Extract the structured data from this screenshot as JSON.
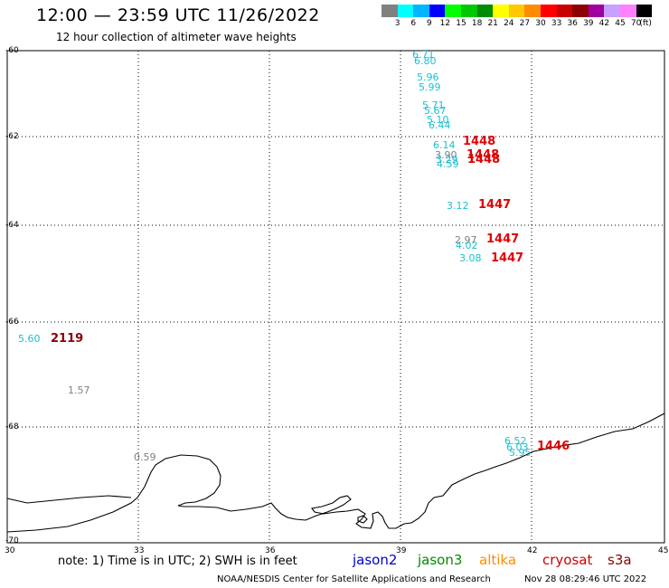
{
  "header": {
    "title": "12:00 — 23:59 UTC 11/26/2022",
    "subtitle": "12 hour collection of altimeter wave heights"
  },
  "colorbar": {
    "colors": [
      "#808080",
      "#00ffff",
      "#00b4ff",
      "#0000ff",
      "#00ff00",
      "#00c800",
      "#008c00",
      "#ffff00",
      "#ffc800",
      "#ff8c00",
      "#ff0000",
      "#c80000",
      "#8c0000",
      "#a000a0",
      "#c8a0ff",
      "#ff80ff",
      "#000000"
    ],
    "labels": [
      "3",
      "6",
      "9",
      "12",
      "15",
      "18",
      "21",
      "24",
      "27",
      "30",
      "33",
      "36",
      "39",
      "42",
      "45",
      "70",
      "(ft)"
    ]
  },
  "axes": {
    "lat_labels": [
      "-60",
      "-62",
      "-64",
      "-66",
      "-68",
      "-70"
    ],
    "lon_labels": [
      "30",
      "33",
      "36",
      "39",
      "42",
      "45"
    ]
  },
  "observations": {
    "swh_labels": [
      {
        "text": "6.71",
        "color": "cyan"
      },
      {
        "text": "6.80",
        "color": "cyan"
      },
      {
        "text": "5.96",
        "color": "cyan"
      },
      {
        "text": "5.99",
        "color": "cyan"
      },
      {
        "text": "5.71",
        "color": "cyan"
      },
      {
        "text": "5.67",
        "color": "cyan"
      },
      {
        "text": "5.10",
        "color": "cyan"
      },
      {
        "text": "6.44",
        "color": "cyan"
      },
      {
        "text": "6.14",
        "color": "cyan"
      },
      {
        "text": "3.90",
        "color": "gray"
      },
      {
        "text": "3.29",
        "color": "cyan"
      },
      {
        "text": "4.59",
        "color": "cyan"
      },
      {
        "text": "3.12",
        "color": "cyan"
      },
      {
        "text": "2.97",
        "color": "gray"
      },
      {
        "text": "4.02",
        "color": "cyan"
      },
      {
        "text": "3.08",
        "color": "cyan"
      },
      {
        "text": "5.60",
        "color": "cyan"
      },
      {
        "text": "1.57",
        "color": "gray"
      },
      {
        "text": "0.59",
        "color": "gray"
      },
      {
        "text": "6.52",
        "color": "cyan"
      },
      {
        "text": "6.03",
        "color": "cyan"
      },
      {
        "text": "5.95",
        "color": "cyan"
      }
    ],
    "time_labels": [
      {
        "text": "1448",
        "color": "red"
      },
      {
        "text": "1448",
        "color": "red"
      },
      {
        "text": "1448",
        "color": "red"
      },
      {
        "text": "1447",
        "color": "red"
      },
      {
        "text": "1447",
        "color": "red"
      },
      {
        "text": "1447",
        "color": "red"
      },
      {
        "text": "2119",
        "color": "dred"
      },
      {
        "text": "1446",
        "color": "red"
      }
    ]
  },
  "footer": {
    "note": "note:  1) Time is in UTC;  2) SWH is in feet",
    "satellites": [
      {
        "name": "jason2",
        "color": "#0000d0"
      },
      {
        "name": "jason3",
        "color": "#008c00"
      },
      {
        "name": "altika",
        "color": "#ff8c00"
      },
      {
        "name": "cryosat",
        "color": "#d00000"
      },
      {
        "name": "s3a",
        "color": "#8a0000"
      }
    ],
    "credit": "NOAA/NESDIS Center for Satellite Applications and Research",
    "timestamp": "Nov 28 08:29:46 UTC 2022"
  }
}
